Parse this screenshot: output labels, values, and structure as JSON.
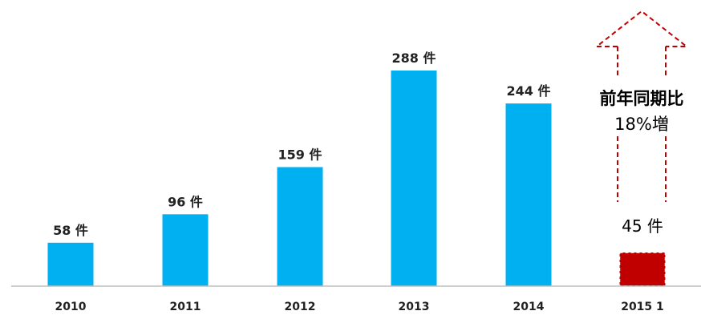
{
  "chart_data": {
    "type": "bar",
    "categories": [
      "2010",
      "2011",
      "2012",
      "2013",
      "2014",
      "2015 1"
    ],
    "values": [
      58,
      96,
      159,
      288,
      244,
      45
    ],
    "unit": "件",
    "data_labels": [
      "58 件",
      "96 件",
      "159 件",
      "288 件",
      "244 件",
      "45 件"
    ],
    "annotation_lines": [
      "前年同期比",
      "18%増"
    ],
    "colors": {
      "bar": "#00b0f0",
      "highlight_bar": "#c00000",
      "arrow_outline": "#c00000",
      "axis": "#bfbfbf",
      "text": "#222222"
    },
    "title": "",
    "xlabel": "",
    "ylabel": "",
    "ylim": [
      0,
      300
    ],
    "grid": false,
    "legend": "none"
  }
}
